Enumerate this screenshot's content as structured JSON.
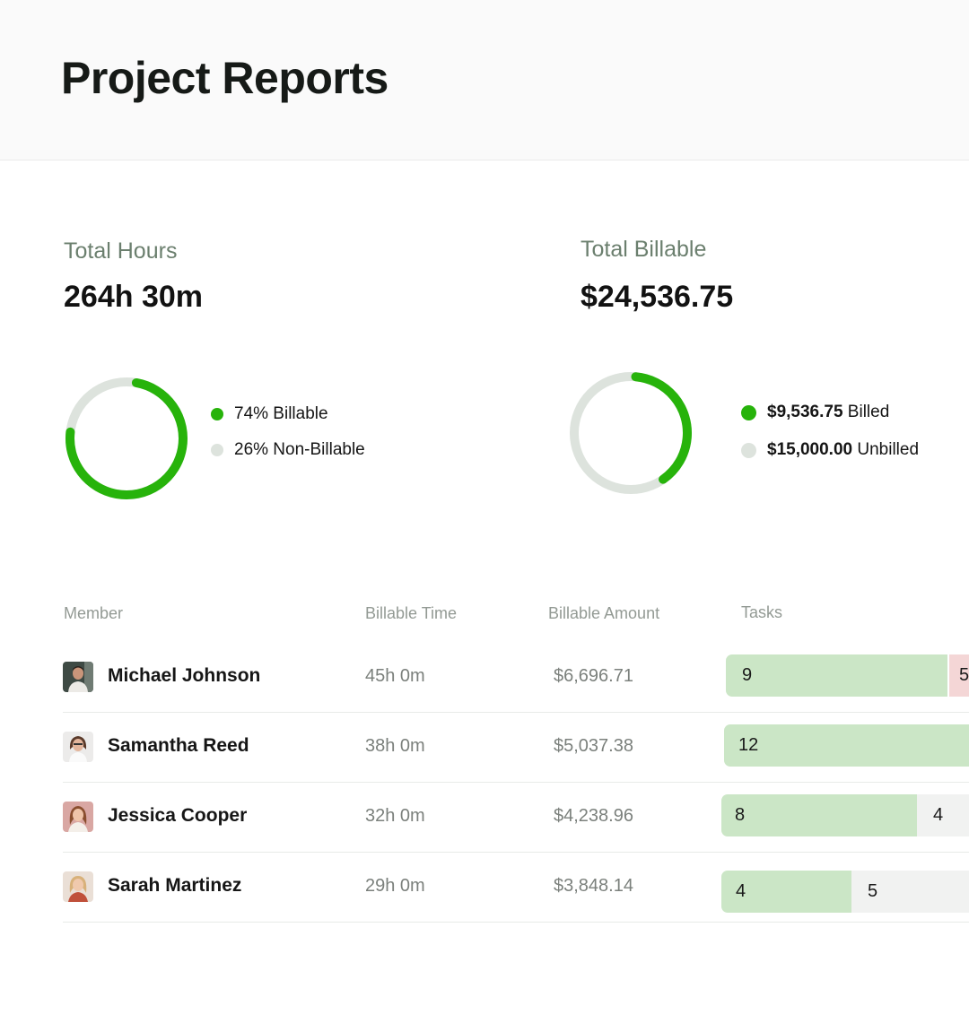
{
  "page": {
    "title": "Project Reports"
  },
  "summary": {
    "hours": {
      "label": "Total Hours",
      "value": "264h 30m",
      "billable_fraction": 0.74,
      "legend": [
        {
          "text": "74% Billable",
          "color": "#27b30b"
        },
        {
          "text": "26% Non-Billable",
          "color": "#dde3dd"
        }
      ]
    },
    "billable": {
      "label": "Total Billable",
      "value": "$24,536.75",
      "billed_fraction": 0.389,
      "legend": [
        {
          "amount": "$9,536.75",
          "text": " Billed",
          "color": "#27b30b"
        },
        {
          "amount": "$15,000.00",
          "text": " Unbilled",
          "color": "#dde3dd"
        }
      ]
    }
  },
  "table": {
    "columns": {
      "member": "Member",
      "billable_time": "Billable Time",
      "billable_amount": "Billable Amount",
      "tasks": "Tasks"
    },
    "rows": [
      {
        "name": "Michael Johnson",
        "billable_time": "45h 0m",
        "billable_amount": "$6,696.71",
        "tasks": {
          "first": "9",
          "second": "5"
        }
      },
      {
        "name": "Samantha Reed",
        "billable_time": "38h 0m",
        "billable_amount": "$5,037.38",
        "tasks": {
          "first": "12"
        }
      },
      {
        "name": "Jessica Cooper",
        "billable_time": "32h 0m",
        "billable_amount": "$4,238.96",
        "tasks": {
          "first": "8",
          "second": "4"
        }
      },
      {
        "name": "Sarah Martinez",
        "billable_time": "29h 0m",
        "billable_amount": "$3,848.14",
        "tasks": {
          "first": "4",
          "second": "5"
        }
      }
    ]
  },
  "colors": {
    "accent_green": "#27b30b",
    "ring_track": "#dde3dd",
    "task_done": "#cbe6c6",
    "task_late": "#f4d6d6",
    "task_open": "#f1f2f1"
  }
}
